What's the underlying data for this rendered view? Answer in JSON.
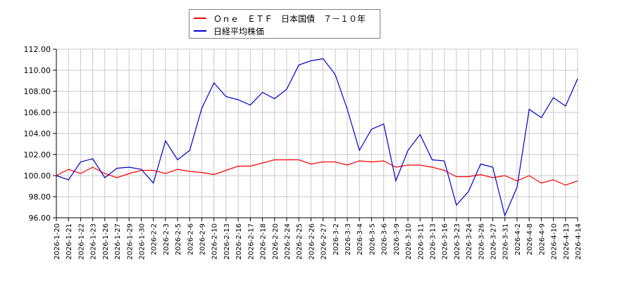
{
  "legend": {
    "items": [
      {
        "label": "Ｏｎｅ　ＥＴＦ　日本国債　７－１０年",
        "color": "#ff0000"
      },
      {
        "label": "日経平均株価",
        "color": "#0000cc"
      }
    ]
  },
  "chart_data": {
    "type": "line",
    "title": "",
    "xlabel": "",
    "ylabel": "",
    "ylim": [
      96,
      112
    ],
    "yticks": [
      "96.00",
      "98.00",
      "100.00",
      "102.00",
      "104.00",
      "106.00",
      "108.00",
      "110.00",
      "112.00"
    ],
    "grid": true,
    "legend_position": "top",
    "x": [
      "2026-1-20",
      "2026-1-21",
      "2026-1-22",
      "2026-1-23",
      "2026-1-26",
      "2026-1-27",
      "2026-1-29",
      "2026-1-30",
      "2026-2-2",
      "2026-2-3",
      "2026-2-5",
      "2026-2-6",
      "2026-2-9",
      "2026-2-10",
      "2026-2-13",
      "2026-2-16",
      "2026-2-17",
      "2026-2-18",
      "2026-2-20",
      "2026-2-24",
      "2026-2-25",
      "2026-2-26",
      "2026-2-27",
      "2026-3-2",
      "2026-3-3",
      "2026-3-4",
      "2026-3-5",
      "2026-3-6",
      "2026-3-9",
      "2026-3-10",
      "2026-3-11",
      "2026-3-13",
      "2026-3-16",
      "2026-3-23",
      "2026-3-24",
      "2026-3-26",
      "2026-3-27",
      "2026-3-31",
      "2026-4-2",
      "2026-4-8",
      "2026-4-9",
      "2026-4-10",
      "2026-4-13",
      "2026-4-14"
    ],
    "series": [
      {
        "name": "Ｏｎｅ　ＥＴＦ　日本国債　７－１０年",
        "color": "#ff0000",
        "values": [
          100.0,
          100.6,
          100.2,
          100.8,
          100.2,
          99.8,
          100.2,
          100.5,
          100.5,
          100.2,
          100.6,
          100.4,
          100.3,
          100.1,
          100.5,
          100.9,
          100.9,
          101.2,
          101.5,
          101.5,
          101.5,
          101.1,
          101.3,
          101.3,
          101.0,
          101.4,
          101.3,
          101.4,
          100.8,
          101.0,
          101.0,
          100.8,
          100.5,
          99.9,
          99.9,
          100.1,
          99.8,
          100.0,
          99.5,
          100.0,
          99.3,
          99.6,
          99.1,
          99.5
        ]
      },
      {
        "name": "日経平均株価",
        "color": "#0000cc",
        "values": [
          100.0,
          99.6,
          101.3,
          101.6,
          99.8,
          100.7,
          100.8,
          100.6,
          99.3,
          103.3,
          101.5,
          102.4,
          106.4,
          108.8,
          107.5,
          107.2,
          106.7,
          107.9,
          107.3,
          108.2,
          110.5,
          110.9,
          111.1,
          109.6,
          106.3,
          102.4,
          104.4,
          104.9,
          99.5,
          102.4,
          103.9,
          101.5,
          101.4,
          97.2,
          98.5,
          101.1,
          100.8,
          96.2,
          98.9,
          106.3,
          105.5,
          107.4,
          106.6,
          109.2
        ]
      }
    ]
  }
}
